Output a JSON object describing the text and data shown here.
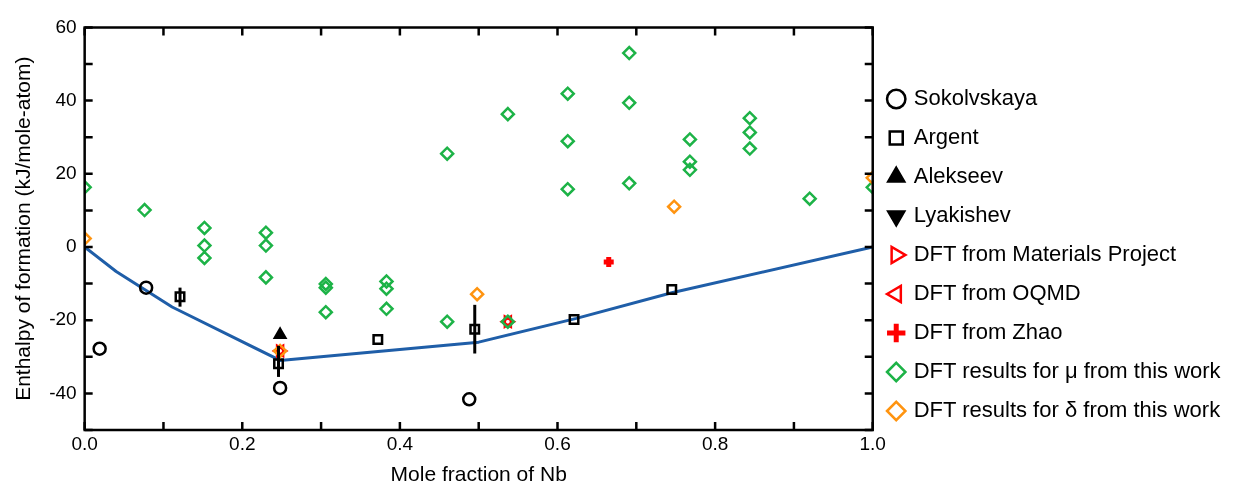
{
  "chart_data": {
    "type": "scatter",
    "xlabel": "Mole fraction of Nb",
    "ylabel": "Enthalpy of formation (kJ/mole-atom)",
    "xlim": [
      0,
      1
    ],
    "ylim": [
      -50,
      60
    ],
    "xticks": [
      {
        "value": 0,
        "label": "0.0"
      },
      {
        "value": 0.1,
        "label": null
      },
      {
        "value": 0.2,
        "label": "0.2"
      },
      {
        "value": 0.3,
        "label": null
      },
      {
        "value": 0.4,
        "label": "0.4"
      },
      {
        "value": 0.5,
        "label": null
      },
      {
        "value": 0.6,
        "label": "0.6"
      },
      {
        "value": 0.7,
        "label": null
      },
      {
        "value": 0.8,
        "label": "0.8"
      },
      {
        "value": 0.9,
        "label": null
      },
      {
        "value": 1,
        "label": "1.0"
      }
    ],
    "yticks": [
      {
        "value": -50,
        "label": null
      },
      -40,
      {
        "value": -30,
        "label": null
      },
      -20,
      {
        "value": -10,
        "label": null
      },
      0,
      {
        "value": 10,
        "label": null
      },
      20,
      {
        "value": 30,
        "label": null
      },
      40,
      {
        "value": 50,
        "label": null
      },
      60
    ],
    "grid": false,
    "legend": "right",
    "series": [
      {
        "type": "line",
        "color": "#1f5ea8",
        "marker": "none",
        "line_style": "solid",
        "x": [
          0,
          0.04,
          0.111,
          0.248,
          0.5,
          0.624,
          0.745,
          1.0
        ],
        "values": [
          0,
          -6.7,
          -16.4,
          -31,
          -26,
          -19.5,
          -12.5,
          0
        ]
      },
      {
        "name": "Sokolvskaya",
        "color": "#000000",
        "marker": "circle",
        "x": [
          0.019,
          0.078,
          0.248,
          0.488
        ],
        "values": [
          -27.8,
          -11.1,
          -38.5,
          -41.6
        ]
      },
      {
        "name": "Argent",
        "color": "#000000",
        "marker": "square",
        "x": [
          0.121,
          0.246,
          0.372,
          0.495,
          0.621,
          0.745
        ],
        "values": [
          -13.6,
          -31.9,
          -25.3,
          -22.5,
          -19.8,
          -11.6
        ],
        "errors": [
          [
            -16.3,
            -11.1
          ],
          [
            -35.5,
            -27
          ],
          null,
          [
            -29.1,
            -15.8
          ],
          null,
          null
        ]
      },
      {
        "name": "Alekseev",
        "color": "#000000",
        "marker": "triangle",
        "x": [
          0.248
        ],
        "values": [
          -24.0
        ]
      },
      {
        "name": "Lyakishev",
        "color": "#000000",
        "marker": "triangle-down"
      },
      {
        "name": "DFT from Materials Project",
        "color": "#ff0000",
        "marker": "triangle-right",
        "x": [
          0.248,
          0.537
        ],
        "values": [
          -28.4,
          -20.4
        ]
      },
      {
        "name": "DFT from OQMD",
        "color": "#ff0000",
        "marker": "triangle-left",
        "x": [
          0.248,
          0.537
        ],
        "values": [
          -28.4,
          -20.4
        ]
      },
      {
        "name": "DFT from Zhao",
        "color": "#ff0000",
        "marker": "cross",
        "x": [
          0.665
        ],
        "values": [
          -4.1
        ]
      },
      {
        "name": "DFT results for μ from this work",
        "color": "#1db347",
        "marker": "diamond",
        "x": [
          0.0,
          0.076,
          0.152,
          0.152,
          0.152,
          0.23,
          0.23,
          0.23,
          0.306,
          0.306,
          0.306,
          0.383,
          0.383,
          0.383,
          0.46,
          0.46,
          0.537,
          0.537,
          0.613,
          0.613,
          0.613,
          0.691,
          0.691,
          0.691,
          0.768,
          0.768,
          0.768,
          0.844,
          0.844,
          0.844,
          0.92,
          1.0
        ],
        "values": [
          16.3,
          10.1,
          5.2,
          0.4,
          -3.0,
          3.9,
          0.4,
          -8.3,
          -10.1,
          -11.1,
          -17.8,
          -9.4,
          -11.4,
          -16.9,
          25.5,
          -20.4,
          36.3,
          -20.4,
          41.9,
          28.9,
          15.8,
          53.0,
          39.4,
          17.4,
          29.4,
          23.3,
          21.1,
          35.2,
          31.3,
          26.9,
          13.2,
          16.3
        ]
      },
      {
        "name": "DFT results for δ from this work",
        "color": "#ff9410",
        "marker": "diamond",
        "x": [
          0.0,
          0.248,
          0.498,
          0.748,
          1.0
        ],
        "values": [
          2.3,
          -28.4,
          -12.9,
          11.0,
          18.9
        ]
      }
    ]
  }
}
